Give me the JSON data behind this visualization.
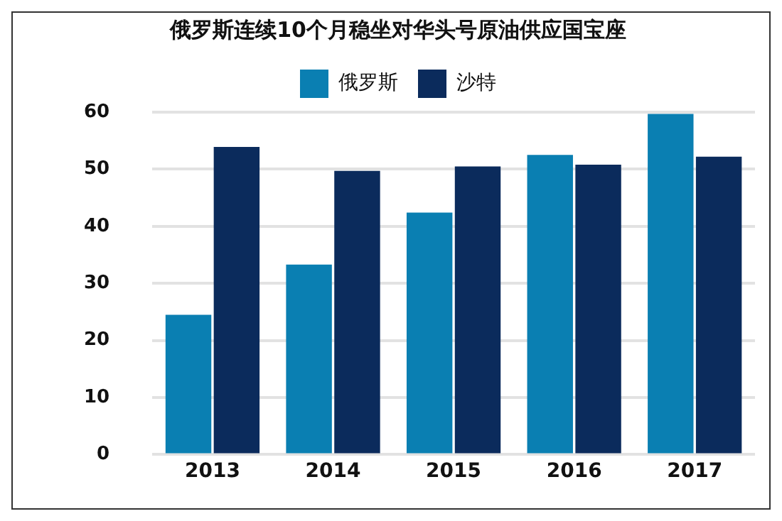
{
  "chart_data": {
    "type": "bar",
    "title": "俄罗斯连续10个月稳坐对华头号原油供应国宝座",
    "categories": [
      "2013",
      "2014",
      "2015",
      "2016",
      "2017"
    ],
    "series": [
      {
        "name": "俄罗斯",
        "color": "#0a7fb2",
        "values": [
          24.5,
          33.3,
          42.4,
          52.5,
          59.7
        ]
      },
      {
        "name": "沙特",
        "color": "#0b2b5c",
        "values": [
          53.9,
          49.7,
          50.5,
          50.8,
          52.2
        ]
      }
    ],
    "ylim": [
      0,
      60
    ],
    "yticks": [
      0,
      10,
      20,
      30,
      40,
      50,
      60
    ],
    "grid": "y",
    "legend": "top"
  }
}
